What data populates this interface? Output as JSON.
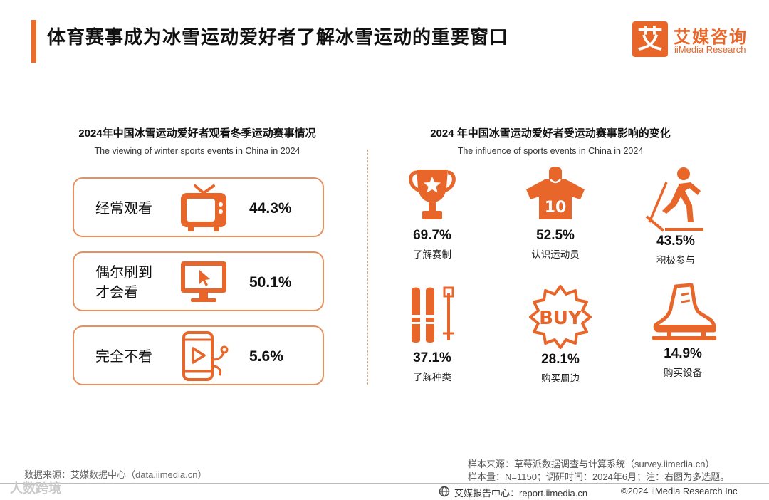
{
  "header": {
    "title": "体育赛事成为冰雪运动爱好者了解冰雪运动的重要窗口",
    "logo_mark": "艾",
    "logo_cn": "艾媒咨询",
    "logo_en": "iiMedia Research"
  },
  "chart_data": [
    {
      "type": "table",
      "title": "2024年中国冰雪运动爱好者观看冬季运动赛事情况",
      "subtitle": "The viewing of winter sports events in China in 2024",
      "categories": [
        "经常观看",
        "偶尔刷到才会看",
        "完全不看"
      ],
      "category_lines": [
        [
          "经常观看"
        ],
        [
          "偶尔刷到",
          "才会看"
        ],
        [
          "完全不看"
        ]
      ],
      "values": [
        "44.3%",
        "50.1%",
        "5.6%"
      ],
      "icons": [
        "tv-icon",
        "monitor-cursor-icon",
        "phone-video-icon"
      ],
      "unit": "%"
    },
    {
      "type": "table",
      "title": "2024 年中国冰雪运动爱好者受运动赛事影响的变化",
      "subtitle": "The influence of sports events in China in 2024",
      "categories": [
        "了解赛制",
        "认识运动员",
        "积极参与",
        "了解种类",
        "购买周边",
        "购买设备"
      ],
      "values": [
        "69.7%",
        "52.5%",
        "43.5%",
        "37.1%",
        "28.1%",
        "14.9%"
      ],
      "icons": [
        "trophy-icon",
        "jersey-icon",
        "skier-icon",
        "skis-icon",
        "buy-badge-icon",
        "skate-icon"
      ],
      "jersey_number": "10",
      "badge_text": "BUY",
      "unit": "%"
    }
  ],
  "footer": {
    "source_left": "数据来源：艾媒数据中心（data.iimedia.cn）",
    "sample_source": "样本来源：草莓派数据调查与计算系统（survey.iimedia.cn）",
    "sample_info": "样本量：N=1150；调研时间：2024年6月；注：右图为多选题。",
    "report_center": "艾媒报告中心：report.iimedia.cn",
    "copyright": "©2024  iiMedia Research  Inc",
    "watermark": "人数跨境"
  },
  "colors": {
    "accent": "#e8662a",
    "card_border": "#e7905d",
    "divider": "#e7a47c"
  }
}
